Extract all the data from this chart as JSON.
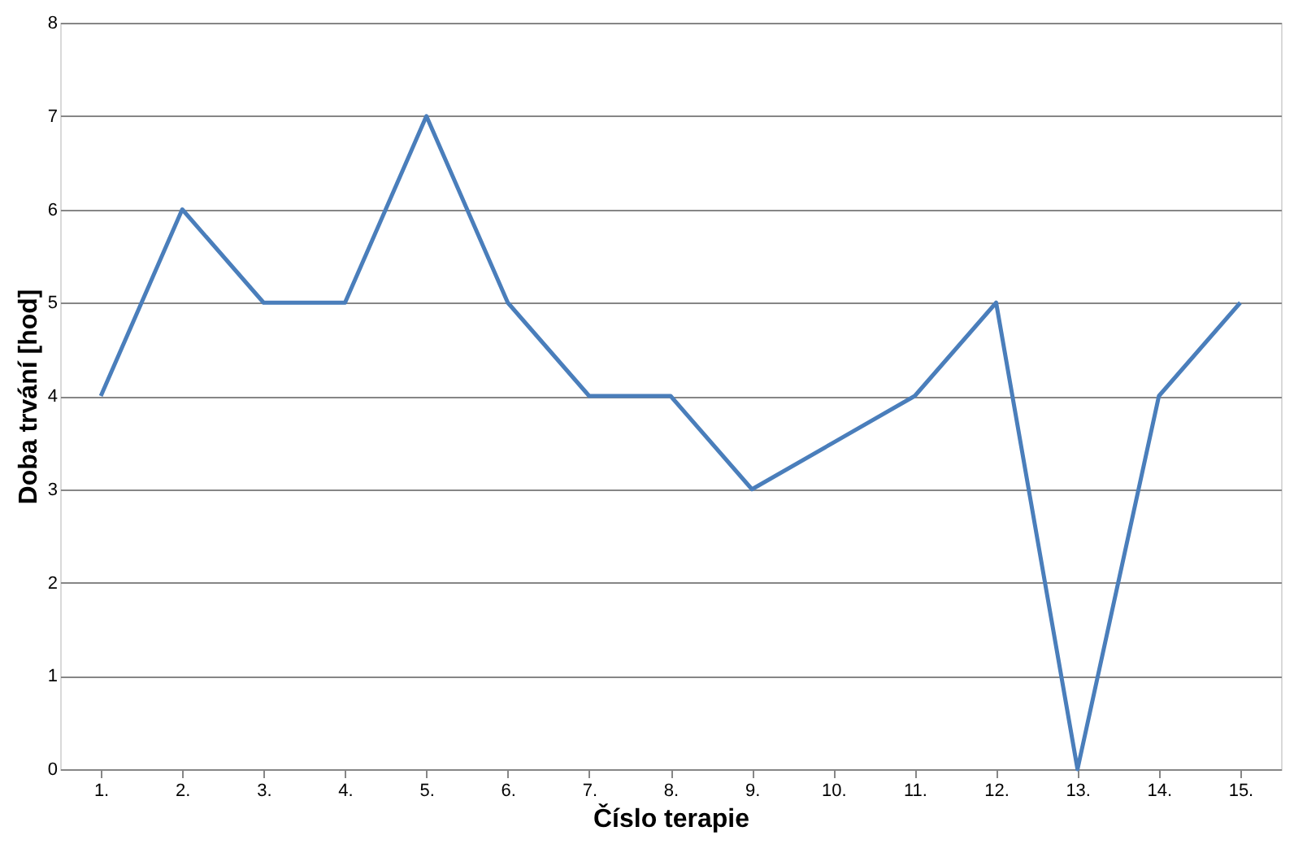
{
  "chart_data": {
    "type": "line",
    "xlabel": "Číslo terapie",
    "ylabel": "Doba trvání [hod]",
    "categories": [
      "1.",
      "2.",
      "3.",
      "4.",
      "5.",
      "6.",
      "7.",
      "8.",
      "9.",
      "10.",
      "11.",
      "12.",
      "13.",
      "14.",
      "15."
    ],
    "series": [
      {
        "color": "#4a7ebb",
        "values": [
          4,
          6,
          5,
          5,
          7,
          5,
          4,
          4,
          3,
          3.5,
          4,
          5,
          0,
          4,
          5
        ]
      }
    ],
    "ylim": [
      0,
      8
    ],
    "yticks": [
      0,
      1,
      2,
      3,
      4,
      5,
      6,
      7,
      8
    ],
    "grid": "y",
    "marker": "none",
    "line_style": "solid"
  }
}
